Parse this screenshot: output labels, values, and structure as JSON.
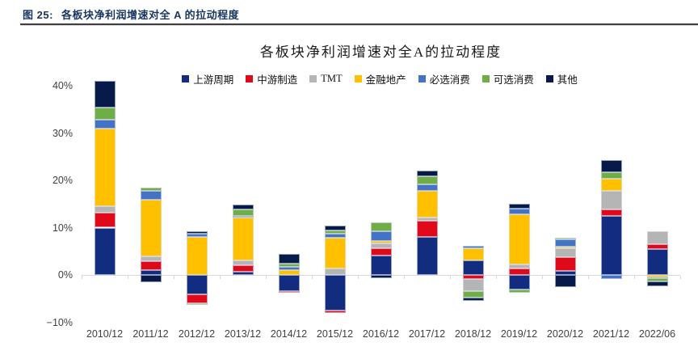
{
  "header": {
    "label": "图 25:",
    "title": "各板块净利润增速对全 A 的拉动程度"
  },
  "chart_data": {
    "type": "bar",
    "stacked": true,
    "title": "各板块净利润增速对全A的拉动程度",
    "xlabel": "",
    "ylabel": "",
    "ylim": [
      -10,
      42
    ],
    "yticks": [
      40,
      30,
      20,
      10,
      0,
      -10
    ],
    "ytick_suffix": "%",
    "grid": false,
    "legend_position": "top",
    "categories": [
      "2010/12",
      "2011/12",
      "2012/12",
      "2013/12",
      "2014/12",
      "2015/12",
      "2016/12",
      "2017/12",
      "2018/12",
      "2019/12",
      "2020/12",
      "2021/12",
      "2022/06"
    ],
    "series": [
      {
        "name": "上游周期",
        "color": "#122c80",
        "values": [
          10.0,
          1.1,
          -4.1,
          0.7,
          -3.4,
          -7.5,
          4.1,
          8.0,
          3.0,
          -3.1,
          0.8,
          12.4,
          5.5
        ]
      },
      {
        "name": "中游制造",
        "color": "#e0091a",
        "values": [
          3.2,
          1.8,
          -1.9,
          1.4,
          -0.3,
          -0.5,
          1.5,
          3.5,
          -0.9,
          1.4,
          2.9,
          1.4,
          1.0
        ]
      },
      {
        "name": "TMT",
        "color": "#b5b5b5",
        "values": [
          1.3,
          1.1,
          0.0,
          0.9,
          0.0,
          1.3,
          1.1,
          0.6,
          -2.5,
          0.9,
          2.0,
          4.0,
          2.8
        ]
      },
      {
        "name": "金融地产",
        "color": "#ffc000",
        "values": [
          16.4,
          11.9,
          8.1,
          9.1,
          1.1,
          6.6,
          0.5,
          5.7,
          2.6,
          10.5,
          0.3,
          2.5,
          -0.5
        ]
      },
      {
        "name": "必选消费",
        "color": "#4472c4",
        "values": [
          1.9,
          1.9,
          0.7,
          0.4,
          0.6,
          0.8,
          2.0,
          1.4,
          0.6,
          1.3,
          1.5,
          -0.8,
          -0.1
        ]
      },
      {
        "name": "可选消费",
        "color": "#6fad47",
        "values": [
          2.6,
          0.6,
          -0.3,
          1.3,
          0.7,
          0.7,
          1.9,
          1.6,
          -1.4,
          -0.7,
          0.4,
          1.4,
          -0.8
        ]
      },
      {
        "name": "其他",
        "color": "#071a4a",
        "values": [
          5.6,
          -1.6,
          0.5,
          1.0,
          2.0,
          1.0,
          -0.6,
          1.3,
          -0.6,
          1.0,
          -2.6,
          2.5,
          -1.0
        ]
      }
    ]
  },
  "colors": {
    "caption_text": "#17365d",
    "caption_rule": "#3f3f3f",
    "axis_line": "#d9d9d9",
    "axis_text": "#404040"
  }
}
